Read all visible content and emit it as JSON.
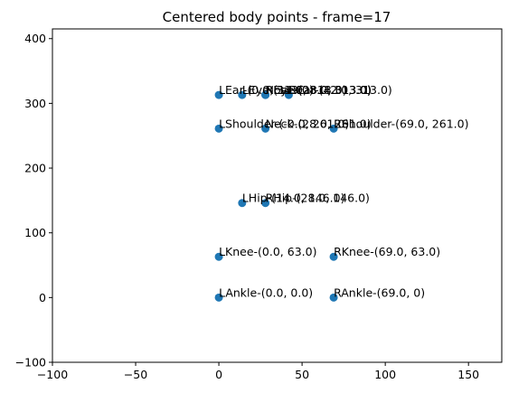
{
  "chart_data": {
    "type": "scatter",
    "title": "Centered body points - frame=17",
    "xlabel": "",
    "ylabel": "",
    "xlim": [
      -100,
      170
    ],
    "ylim": [
      -100,
      415
    ],
    "xticks": [
      -100,
      -50,
      0,
      50,
      100,
      150
    ],
    "yticks": [
      -100,
      0,
      100,
      200,
      300,
      400
    ],
    "grid": false,
    "marker_color": "#1f77b4",
    "points": [
      {
        "x": 28,
        "y": 313,
        "label": "Nose-(28.0, 313.0)"
      },
      {
        "x": 28,
        "y": 261,
        "label": "Neck-(28.0, 261.0)"
      },
      {
        "x": 69,
        "y": 261,
        "label": "RShoulder-(69.0, 261.0)"
      },
      {
        "x": 0,
        "y": 261,
        "label": "LShoulder-(-0.0, 261.0)"
      },
      {
        "x": 28,
        "y": 146,
        "label": "RHip-(28.0, 146.0)"
      },
      {
        "x": 14,
        "y": 146,
        "label": "LHip-(14.0, 146.0)"
      },
      {
        "x": 69,
        "y": 63,
        "label": "RKnee-(69.0, 63.0)"
      },
      {
        "x": 0,
        "y": 63,
        "label": "LKnee-(0.0, 63.0)"
      },
      {
        "x": 69,
        "y": 0,
        "label": "RAnkle-(69.0, 0)"
      },
      {
        "x": 0,
        "y": 0,
        "label": "LAnkle-(0.0, 0.0)"
      },
      {
        "x": 28,
        "y": 313,
        "label": "REye-(28.0, 313.0)"
      },
      {
        "x": 14,
        "y": 313,
        "label": "LEye-(14.0, 313.0)"
      },
      {
        "x": 42,
        "y": 313,
        "label": "REar-(42.0, 313.0)"
      },
      {
        "x": 0,
        "y": 313,
        "label": "LEar-(0.0, 313.0)"
      }
    ]
  }
}
